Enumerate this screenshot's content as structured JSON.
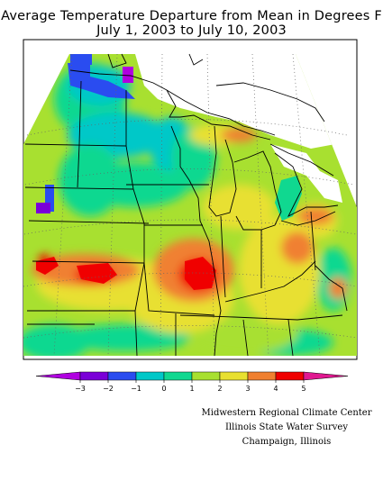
{
  "title_line1": "Average Temperature Departure from Mean in Degrees F",
  "title_line2": "July 1, 2003 to July 10, 2003",
  "colorbar": {
    "bins": [
      {
        "from": -4,
        "to": -3,
        "color": "#b000e0"
      },
      {
        "from": -3,
        "to": -2,
        "color": "#7a00d8"
      },
      {
        "from": -2,
        "to": -1,
        "color": "#2a4cf0"
      },
      {
        "from": -1,
        "to": 0,
        "color": "#00c8c8"
      },
      {
        "from": 0,
        "to": 1,
        "color": "#10d890"
      },
      {
        "from": 1,
        "to": 2,
        "color": "#a8e030"
      },
      {
        "from": 2,
        "to": 3,
        "color": "#e8e030"
      },
      {
        "from": 3,
        "to": 4,
        "color": "#f08030"
      },
      {
        "from": 4,
        "to": 5,
        "color": "#f00000"
      },
      {
        "from": 5,
        "to": 6,
        "color": "#e01890"
      }
    ],
    "tick_labels": [
      "−3",
      "−2",
      "−1",
      "0",
      "1",
      "2",
      "3",
      "4",
      "5"
    ]
  },
  "credits": {
    "line1": "Midwestern Regional Climate Center",
    "line2": "Illinois State Water Survey",
    "line3": "Champaign, Illinois"
  }
}
